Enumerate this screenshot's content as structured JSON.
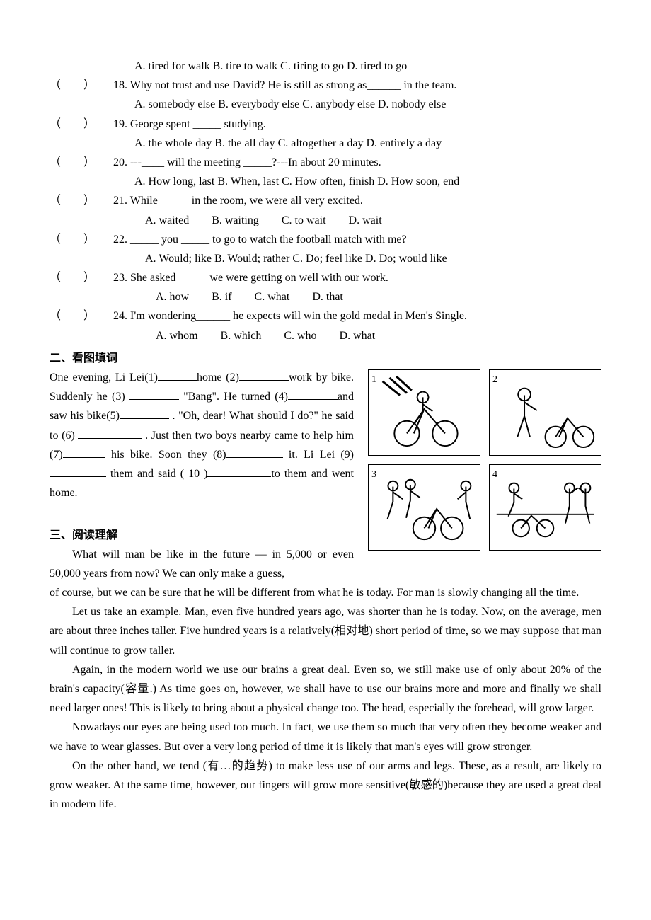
{
  "mc": {
    "paren_open": "（",
    "paren_close": "）",
    "items": [
      {
        "opts_only": true,
        "opts": "A. tired for walk B. tire to walk C. tiring to go D. tired to go",
        "opt_class": "opt-indent"
      },
      {
        "num": "18.",
        "q": "Why not trust and use David? He is still as strong as______ in the team.",
        "opts": "A. somebody else B. everybody else C. anybody else D. nobody else",
        "opt_class": "opt-indent"
      },
      {
        "num": "19.",
        "q": "George spent _____ studying.",
        "opts": "A. the whole day B. the all day C. altogether a day D. entirely a day",
        "opt_class": "opt-indent"
      },
      {
        "num": "20.",
        "q": "---____ will the meeting _____?---In about 20 minutes.",
        "opts": "A. How long, last B. When, last C. How often, finish D. How soon, end",
        "opt_class": "opt-indent"
      },
      {
        "num": "21.",
        "q": "While _____ in the room, we were all very excited.",
        "opts": "A. waited  B. waiting  C. to wait  D. wait",
        "opt_class": "opt-indent2"
      },
      {
        "num": "22.",
        "q": "_____ you _____ to go to watch the football match with me?",
        "opts": "A. Would; like B. Would; rather C. Do; feel like D. Do; would like",
        "opt_class": "opt-indent2"
      },
      {
        "num": "23.",
        "q": "She asked _____ we were getting on well with our work.",
        "opts": "A. how  B. if  C. what  D. that",
        "opt_class": "opt-indent3"
      },
      {
        "num": "24.",
        "q": "I'm wondering______ he expects will win the gold medal in Men's Single.",
        "opts": "A. whom  B. which  C. who  D. what",
        "opt_class": "opt-indent3"
      }
    ]
  },
  "section2": {
    "title": "二、看图填词",
    "text_parts": {
      "p1a": "One evening, Li Lei(1)",
      "p1b": "home (2)",
      "p1c": "work by bike. Suddenly he (3) ",
      "p1d": " \"Bang\". He turned (4)",
      "p1e": "and saw his bike(5)",
      "p1f": " . \"Oh, dear! What should I do?\" he said to (6) ",
      "p1g": " . Just then two boys nearby came to help him (7)",
      "p1h": " his bike. Soon they (8)",
      "p1i": " it. Li Lei (9)",
      "p1j": " them and said ( 10 )",
      "p1k": "to them and went home."
    },
    "images": [
      {
        "label": "1"
      },
      {
        "label": "2"
      },
      {
        "label": "3"
      },
      {
        "label": "4"
      }
    ]
  },
  "section3": {
    "title": "三、阅读理解",
    "paras": [
      "What will man be like in the future — in 5,000 or even 50,000 years from now? We can only make a guess, of course, but we can be sure that he will be different from what he is today. For man is slowly changing all the time.",
      "Let us take an example. Man, even five hundred years ago, was shorter than he is today. Now, on the average, men are about three inches taller. Five hundred years is a relatively(相对地) short period of time, so we may suppose that man will continue to grow taller.",
      "Again, in the modern world we use our brains a great deal. Even so, we still make use of only about 20% of the brain's capacity(容量.) As time goes on, however, we shall have to use our brains more and more and finally we shall need larger ones! This is likely to bring about a physical change too. The head, especially the forehead, will grow larger.",
      "Nowadays our eyes are being used too much. In fact, we use them so much that very often they become weaker and we have to wear glasses. But over a very long period of time it is likely that man's eyes will grow stronger.",
      "On the other hand, we tend (有…的趋势) to make less use of our arms and legs. These, as a result, are likely to grow weaker. At the same time, however, our fingers will grow more sensitive(敏感的)because they are used a great deal in modern life."
    ]
  }
}
